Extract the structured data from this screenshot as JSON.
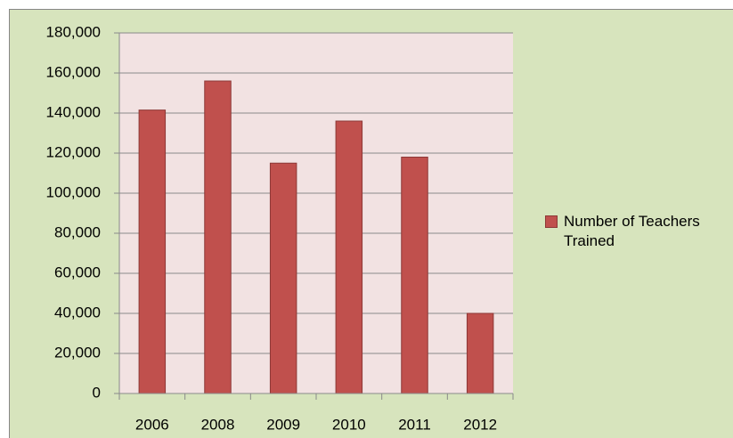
{
  "chart_data": {
    "type": "bar",
    "categories": [
      "2006",
      "2008",
      "2009",
      "2010",
      "2011",
      "2012"
    ],
    "series": [
      {
        "name": "Number of Teachers Trained",
        "color": "#c0504d",
        "values": [
          141500,
          156000,
          115000,
          136000,
          118000,
          40000
        ]
      }
    ],
    "ylim": [
      0,
      180000
    ],
    "yticks": [
      0,
      {
        "value": 20000,
        "label": "20,000"
      },
      {
        "value": 40000,
        "label": "40,000"
      },
      {
        "value": 60000,
        "label": "60,000"
      },
      {
        "value": 80000,
        "label": "80,000"
      },
      {
        "value": 100000,
        "label": "100,000"
      },
      {
        "value": 120000,
        "label": "120,000"
      },
      {
        "value": 140000,
        "label": "140,000"
      },
      {
        "value": 160000,
        "label": "160,000"
      },
      {
        "value": 180000,
        "label": "180,000"
      }
    ],
    "grid": true,
    "legend": "right"
  }
}
